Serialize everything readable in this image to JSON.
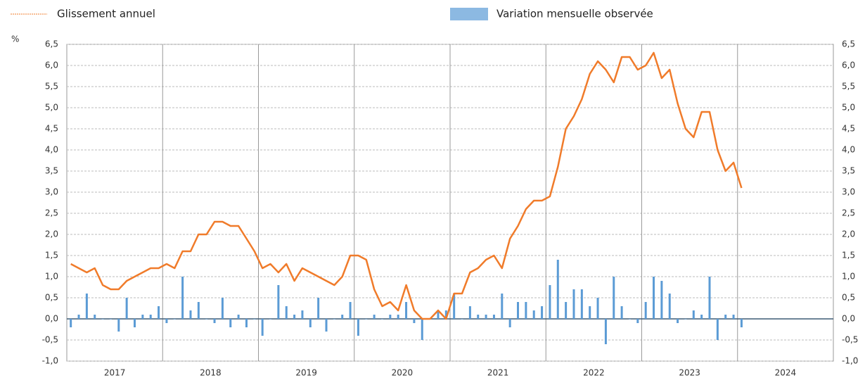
{
  "chart_data": {
    "type": "bar_line",
    "y_label": "%",
    "categories": [
      "2017",
      null,
      null,
      null,
      null,
      null,
      null,
      null,
      null,
      null,
      null,
      null,
      "2018",
      null,
      null,
      null,
      null,
      null,
      null,
      null,
      null,
      null,
      null,
      null,
      "2019",
      null,
      null,
      null,
      null,
      null,
      null,
      null,
      null,
      null,
      null,
      null,
      "2020",
      null,
      null,
      null,
      null,
      null,
      null,
      null,
      null,
      null,
      null,
      null,
      "2021",
      null,
      null,
      null,
      null,
      null,
      null,
      null,
      null,
      null,
      null,
      null,
      "2022",
      null,
      null,
      null,
      null,
      null,
      null,
      null,
      null,
      null,
      null,
      null,
      "2023",
      null,
      null,
      null,
      null,
      null,
      null,
      null,
      null,
      null,
      null,
      null,
      "2024"
    ],
    "series": [
      {
        "name": "Glissement annuel",
        "type": "line",
        "color": "#f07b2a",
        "values": [
          1.3,
          1.2,
          1.1,
          1.2,
          0.8,
          0.7,
          0.7,
          0.9,
          1.0,
          1.1,
          1.2,
          1.2,
          1.3,
          1.2,
          1.6,
          1.6,
          2.0,
          2.0,
          2.3,
          2.3,
          2.2,
          2.2,
          1.9,
          1.6,
          1.2,
          1.3,
          1.1,
          1.3,
          0.9,
          1.2,
          1.1,
          1.0,
          0.9,
          0.8,
          1.0,
          1.5,
          1.5,
          1.4,
          0.7,
          0.3,
          0.4,
          0.2,
          0.8,
          0.2,
          0.0,
          0.0,
          0.2,
          0.0,
          0.6,
          0.6,
          1.1,
          1.2,
          1.4,
          1.5,
          1.2,
          1.9,
          2.2,
          2.6,
          2.8,
          2.8,
          2.9,
          3.6,
          4.5,
          4.8,
          5.2,
          5.8,
          6.1,
          5.9,
          5.6,
          6.2,
          6.2,
          5.9,
          6.0,
          6.3,
          5.7,
          5.9,
          5.1,
          4.5,
          4.3,
          4.9,
          4.9,
          4.0,
          3.5,
          3.7,
          3.1
        ]
      },
      {
        "name": "Variation mensuelle observée",
        "type": "bar",
        "color": "#5b9bd5",
        "values": [
          -0.2,
          0.1,
          0.6,
          0.1,
          0.0,
          0.0,
          -0.3,
          0.5,
          -0.2,
          0.1,
          0.1,
          0.3,
          -0.1,
          0.0,
          1.0,
          0.2,
          0.4,
          0.0,
          -0.1,
          0.5,
          -0.2,
          0.1,
          -0.2,
          0.0,
          -0.4,
          0.0,
          0.8,
          0.3,
          0.1,
          0.2,
          -0.2,
          0.5,
          -0.3,
          0.0,
          0.1,
          0.4,
          -0.4,
          0.0,
          0.1,
          0.0,
          0.1,
          0.1,
          0.4,
          -0.1,
          -0.5,
          0.0,
          0.2,
          0.2,
          0.6,
          0.0,
          0.3,
          0.1,
          0.1,
          0.1,
          0.6,
          -0.2,
          0.4,
          0.4,
          0.2,
          0.3,
          0.8,
          1.4,
          0.4,
          0.7,
          0.7,
          0.3,
          0.5,
          -0.6,
          1.0,
          0.3,
          0.0,
          -0.1,
          0.4,
          1.0,
          0.9,
          0.6,
          -0.1,
          0.0,
          0.2,
          0.1,
          1.0,
          -0.5,
          0.1,
          0.1,
          -0.2
        ]
      }
    ],
    "ylim": [
      -1.0,
      6.5
    ],
    "yticks": [
      {
        "value": -1.0,
        "label": "-1,0"
      },
      {
        "value": -0.5,
        "label": "-0,5"
      },
      {
        "value": 0.0,
        "label": "0,0"
      },
      {
        "value": 0.5,
        "label": "0,5"
      },
      {
        "value": 1.0,
        "label": "1,0"
      },
      {
        "value": 1.5,
        "label": "1,5"
      },
      {
        "value": 2.0,
        "label": "2,0"
      },
      {
        "value": 2.5,
        "label": "2,5"
      },
      {
        "value": 3.0,
        "label": "3,0"
      },
      {
        "value": 3.5,
        "label": "3,5"
      },
      {
        "value": 4.0,
        "label": "4,0"
      },
      {
        "value": 4.5,
        "label": "4,5"
      },
      {
        "value": 5.0,
        "label": "5,0"
      },
      {
        "value": 5.5,
        "label": "5,5"
      },
      {
        "value": 6.0,
        "label": "6,0"
      },
      {
        "value": 6.5,
        "label": "6,5"
      }
    ],
    "grid": true,
    "legend": "top"
  }
}
